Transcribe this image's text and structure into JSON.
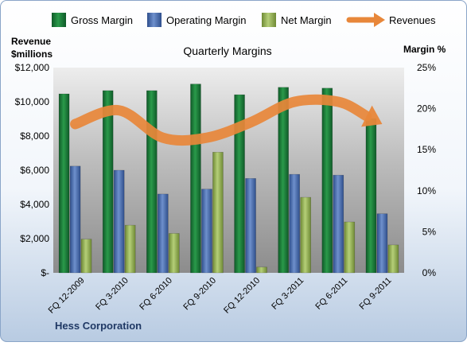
{
  "chart_data": {
    "type": "bar",
    "title": "Quarterly Margins",
    "company": "Hess Corporation",
    "left_axis_label": [
      "Revenue",
      "$millions"
    ],
    "right_axis_label": "Margin %",
    "left_ticks": [
      "$-",
      "$2,000",
      "$4,000",
      "$6,000",
      "$8,000",
      "$10,000",
      "$12,000"
    ],
    "right_ticks": [
      "0%",
      "5%",
      "10%",
      "15%",
      "20%",
      "25%"
    ],
    "left_range": [
      0,
      12000
    ],
    "right_range": [
      0,
      25
    ],
    "categories": [
      "FQ 12-2009",
      "FQ 3-2010",
      "FQ 6-2010",
      "FQ 9-2010",
      "FQ 12-2010",
      "FQ 3-2011",
      "FQ 6-2011",
      "FQ 9-2011"
    ],
    "series": [
      {
        "name": "Gross Margin",
        "axis": "right",
        "color": "#1e7a3c",
        "values": [
          21.8,
          22.2,
          22.2,
          23.0,
          21.7,
          22.6,
          22.5,
          18.8
        ]
      },
      {
        "name": "Operating Margin",
        "axis": "right",
        "color": "#4a6fb5",
        "values": [
          13.0,
          12.5,
          9.6,
          10.2,
          11.5,
          12.0,
          11.9,
          7.2
        ]
      },
      {
        "name": "Net Margin",
        "axis": "right",
        "color": "#9bbb59",
        "values": [
          4.1,
          5.8,
          4.8,
          14.7,
          0.7,
          9.2,
          6.2,
          3.4
        ]
      },
      {
        "name": "Revenues",
        "axis": "left",
        "type": "line",
        "color": "#e8873a",
        "values": [
          8700,
          9500,
          7900,
          7900,
          8800,
          10000,
          10000,
          8700
        ]
      }
    ],
    "grid": false,
    "legend_position": "top"
  }
}
